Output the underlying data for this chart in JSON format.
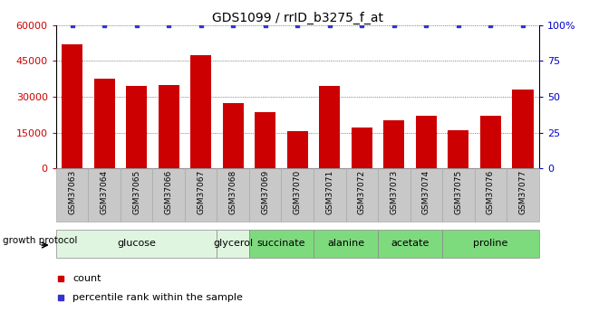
{
  "title": "GDS1099 / rrID_b3275_f_at",
  "categories": [
    "GSM37063",
    "GSM37064",
    "GSM37065",
    "GSM37066",
    "GSM37067",
    "GSM37068",
    "GSM37069",
    "GSM37070",
    "GSM37071",
    "GSM37072",
    "GSM37073",
    "GSM37074",
    "GSM37075",
    "GSM37076",
    "GSM37077"
  ],
  "counts": [
    52000,
    37500,
    34500,
    35000,
    47500,
    27500,
    23500,
    15500,
    34500,
    17000,
    20000,
    22000,
    16000,
    22000,
    33000
  ],
  "bar_color": "#cc0000",
  "dot_color": "#3333cc",
  "ylim_left": [
    0,
    60000
  ],
  "ylim_right": [
    0,
    100
  ],
  "yticks_left": [
    0,
    15000,
    30000,
    45000,
    60000
  ],
  "yticks_right": [
    0,
    25,
    50,
    75,
    100
  ],
  "yticklabels_right": [
    "0",
    "25",
    "50",
    "75",
    "100%"
  ],
  "groups": [
    {
      "label": "glucose",
      "start": 0,
      "end": 4,
      "color": "#e0f5e0"
    },
    {
      "label": "glycerol",
      "start": 5,
      "end": 5,
      "color": "#e0f5e0"
    },
    {
      "label": "succinate",
      "start": 6,
      "end": 7,
      "color": "#7dda7d"
    },
    {
      "label": "alanine",
      "start": 8,
      "end": 9,
      "color": "#7dda7d"
    },
    {
      "label": "acetate",
      "start": 10,
      "end": 11,
      "color": "#7dda7d"
    },
    {
      "label": "proline",
      "start": 12,
      "end": 14,
      "color": "#7dda7d"
    }
  ],
  "xtick_bg_color": "#c8c8c8",
  "xtick_border_color": "#aaaaaa",
  "legend_count_label": "count",
  "legend_pct_label": "percentile rank within the sample",
  "growth_protocol_label": "growth protocol",
  "bar_color_left_tick": "#cc0000",
  "bar_color_right_tick": "#0000cc",
  "grid_color": "#555555",
  "title_fontsize": 10,
  "axis_tick_fontsize": 8,
  "group_label_fontsize": 8,
  "xtick_fontsize": 6.5
}
